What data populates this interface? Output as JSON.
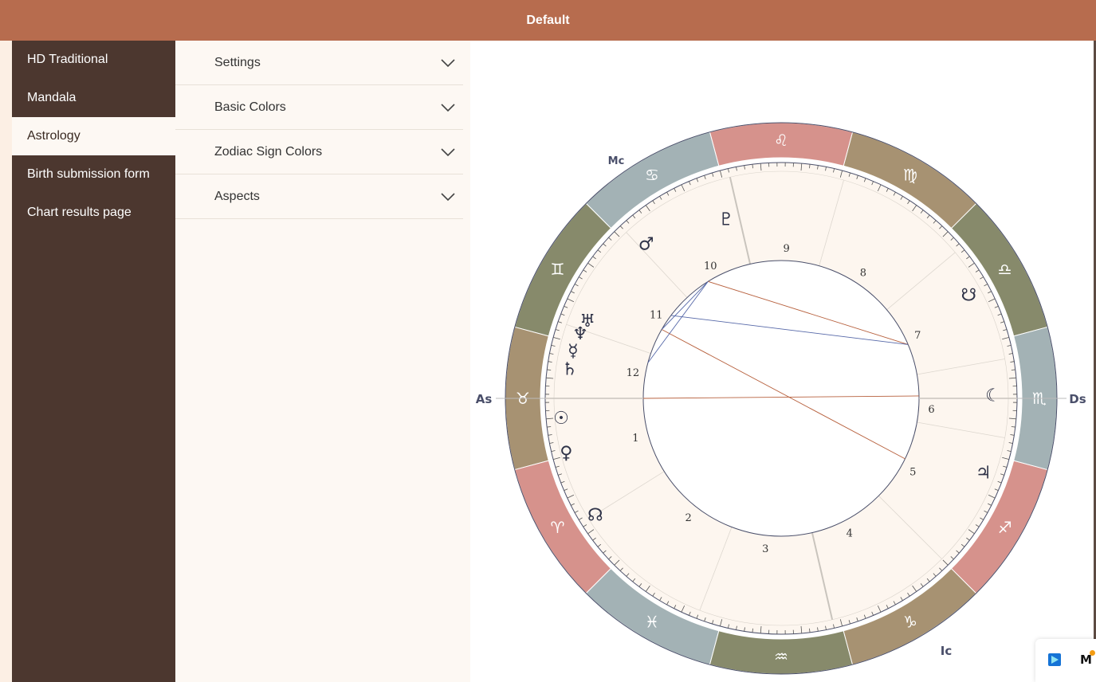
{
  "header": {
    "title": "Default"
  },
  "sidebar": {
    "items": [
      {
        "label": "HD Traditional"
      },
      {
        "label": "Mandala"
      },
      {
        "label": "Astrology",
        "active": true
      },
      {
        "label": "Birth submission form"
      },
      {
        "label": "Chart results page"
      }
    ]
  },
  "settings_panel": {
    "sections": [
      {
        "label": "Settings",
        "icon": "chevron-down-icon"
      },
      {
        "label": "Basic Colors",
        "icon": "chevron-down-icon"
      },
      {
        "label": "Zodiac Sign Colors",
        "icon": "chevron-down-icon"
      },
      {
        "label": "Aspects",
        "icon": "chevron-down-icon"
      }
    ]
  },
  "chart": {
    "angles": {
      "as": "As",
      "ds": "Ds",
      "mc": "Mc",
      "ic": "Ic"
    },
    "houses": [
      "1",
      "2",
      "3",
      "4",
      "5",
      "6",
      "7",
      "8",
      "9",
      "10",
      "11",
      "12"
    ],
    "signs": [
      {
        "name": "libra",
        "glyph": "♎",
        "color": "#878a6b"
      },
      {
        "name": "virgo",
        "glyph": "♍",
        "color": "#a79272"
      },
      {
        "name": "leo",
        "glyph": "♌",
        "color": "#d6928c"
      },
      {
        "name": "cancer",
        "glyph": "♋",
        "color": "#a3b2b5"
      },
      {
        "name": "gemini",
        "glyph": "♊",
        "color": "#878a6b"
      },
      {
        "name": "taurus",
        "glyph": "♉",
        "color": "#a79272"
      },
      {
        "name": "aries",
        "glyph": "♈",
        "color": "#d6928c"
      },
      {
        "name": "pisces",
        "glyph": "♓",
        "color": "#a3b2b5"
      },
      {
        "name": "aquarius",
        "glyph": "♒",
        "color": "#878a6b"
      },
      {
        "name": "capricorn",
        "glyph": "♑",
        "color": "#a79272"
      },
      {
        "name": "sagittarius",
        "glyph": "♐",
        "color": "#d6928c"
      },
      {
        "name": "scorpio",
        "glyph": "♏",
        "color": "#a3b2b5"
      }
    ],
    "planets": [
      {
        "name": "pluto",
        "glyph": "♇"
      },
      {
        "name": "mars",
        "glyph": "♂"
      },
      {
        "name": "uranus",
        "glyph": "♅"
      },
      {
        "name": "neptune",
        "glyph": "♆"
      },
      {
        "name": "mercury",
        "glyph": "☿"
      },
      {
        "name": "saturn",
        "glyph": "♄"
      },
      {
        "name": "sun",
        "glyph": "☉"
      },
      {
        "name": "venus",
        "glyph": "♀"
      },
      {
        "name": "north-node",
        "glyph": "☊"
      },
      {
        "name": "south-node",
        "glyph": "☋"
      },
      {
        "name": "moon",
        "glyph": "☾"
      },
      {
        "name": "jupiter",
        "glyph": "♃"
      }
    ],
    "colors": {
      "inner_fill": "#fdf6ef",
      "ring_stroke": "#4a4f6a",
      "aspect_red": "#b7603d",
      "aspect_blue": "#5668a8"
    }
  }
}
